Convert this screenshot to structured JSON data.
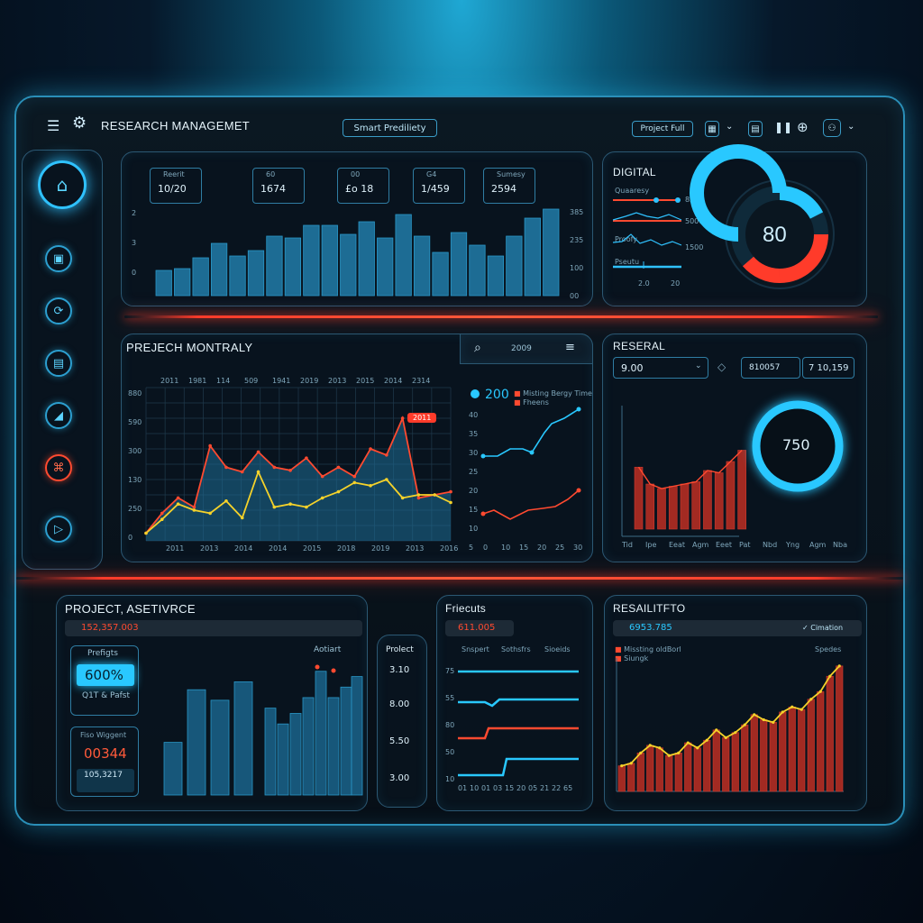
{
  "header": {
    "title": "RESEARCH MANAGEMET",
    "search_tab": "Smart Prediliety",
    "project_button": "Project Full"
  },
  "colors": {
    "accent": "#29c8ff",
    "alert": "#ff3b2a",
    "yellow": "#f5d22a"
  },
  "sidebar": {
    "items": [
      "home-icon",
      "monitor-icon",
      "refresh-icon",
      "document-icon",
      "chart-icon",
      "alert-icon",
      "play-icon"
    ]
  },
  "top_stats": {
    "cards": [
      {
        "label": "Reerit",
        "value": "10/20"
      },
      {
        "label": "60",
        "value": "1674"
      },
      {
        "label": "00",
        "value": "£o 18"
      },
      {
        "label": "G4",
        "value": "1/459"
      },
      {
        "label": "Sumesy",
        "value": "2594"
      }
    ],
    "y_left": [
      "2",
      "3",
      "0"
    ],
    "y_right": [
      "385",
      "235",
      "100",
      "00"
    ],
    "chart_data": {
      "type": "bar",
      "values": [
        28,
        30,
        42,
        58,
        44,
        50,
        66,
        64,
        78,
        78,
        68,
        82,
        64,
        90,
        66,
        48,
        70,
        56,
        44,
        66,
        86,
        96
      ]
    }
  },
  "digital": {
    "title": "DIGITAL",
    "gauge_value": "80",
    "rows": [
      {
        "label": "Quaaresy",
        "value": "8500"
      },
      {
        "label": "",
        "value": "5000"
      },
      {
        "label": "Proofy",
        "value": "1500"
      },
      {
        "label": "Pseutu",
        "value": ""
      }
    ],
    "x_labels": [
      "2.0",
      "20"
    ]
  },
  "monthly": {
    "title": "PREJECH MONTRALY",
    "top_labels": [
      "2011",
      "1981",
      "114",
      "509",
      "1941",
      "2019",
      "2013",
      "2015",
      "2014",
      "2314"
    ],
    "y_labels": [
      "880",
      "590",
      "300",
      "130",
      "250",
      "0"
    ],
    "x_labels": [
      "2011",
      "2013",
      "2014",
      "2014",
      "2015",
      "2018",
      "2019",
      "2013",
      "2016"
    ],
    "callout": "2011",
    "chart_data": {
      "type": "area",
      "series": [
        {
          "values": [
            5,
            18,
            28,
            22,
            62,
            48,
            45,
            58,
            48,
            46,
            54,
            42,
            48,
            42,
            60,
            56,
            80,
            28,
            30,
            32
          ]
        },
        {
          "values": [
            5,
            14,
            24,
            20,
            18,
            26,
            15,
            45,
            22,
            24,
            22,
            28,
            32,
            38,
            36,
            40,
            28,
            30,
            30,
            25
          ]
        }
      ]
    }
  },
  "mini": {
    "search_icon": "search-icon",
    "year": "2009",
    "menu_icon": "menu-icon",
    "value": "200",
    "legend": [
      "Misting Bergy Time",
      "Fheens"
    ],
    "y_labels": [
      "40",
      "35",
      "30",
      "25",
      "20",
      "15",
      "10",
      "5"
    ],
    "x_labels": [
      "0",
      "10",
      "15",
      "20",
      "25",
      "30"
    ]
  },
  "reserval": {
    "title": "RESERAL",
    "select_value": "9.00",
    "field_a": "810057",
    "field_b": "7 10,159",
    "gauge_value": "750",
    "x_labels": [
      "Tid",
      "Ipe",
      "Eeat",
      "Agm",
      "Eeet",
      "Pat",
      "Nbd",
      "Yng",
      "Agm",
      "Nba"
    ],
    "chart_data": {
      "type": "bar",
      "values": [
        55,
        40,
        36,
        38,
        40,
        42,
        52,
        50,
        60,
        70
      ]
    }
  },
  "asset": {
    "title": "PROJECT, ASETIVRCE",
    "bar_value": "152,357.003",
    "card1_label": "Prefigts",
    "card1_value": "600%",
    "card1_sub": "Q1T & Pafst",
    "card2_label": "Fiso Wiggent",
    "card2_value": "00344",
    "card2_sub": "105,3217",
    "chart_label": "Aotiart",
    "chart_data": {
      "type": "bar",
      "values": [
        40,
        80,
        72,
        86,
        66,
        54,
        62,
        74,
        94,
        74,
        82,
        90
      ]
    }
  },
  "project_col": {
    "title": "Prolect",
    "values": [
      "3.10",
      "8.00",
      "5.50",
      "3.00"
    ]
  },
  "frects": {
    "title": "Friecuts",
    "bar_value": "611.005",
    "legend": [
      "Snspert",
      "Sothsfrs",
      "Sioeids"
    ],
    "y_labels": [
      "75",
      "55",
      "80",
      "50",
      "10"
    ],
    "x_labels": [
      "01",
      "10",
      "01",
      "03",
      "15",
      "20",
      "05",
      "21",
      "22",
      "65"
    ]
  },
  "result": {
    "title": "RESAILITFTO",
    "bar_value": "6953.785",
    "toggle": "Cimation",
    "legend": [
      "Missting oldBorl",
      "Siungk"
    ],
    "legend_right": "Spedes",
    "chart_data": {
      "type": "bar",
      "values": [
        20,
        22,
        30,
        36,
        34,
        28,
        30,
        38,
        34,
        40,
        48,
        42,
        46,
        52,
        60,
        56,
        54,
        62,
        66,
        64,
        72,
        78,
        90,
        98
      ]
    }
  }
}
